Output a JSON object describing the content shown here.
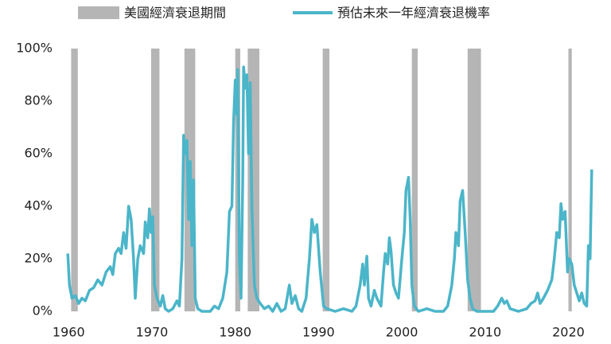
{
  "chart_data": {
    "type": "line",
    "recessions": {
      "name": "美國經濟衰退期間",
      "color": "#b5b5b5",
      "periods": [
        [
          1960.3,
          1961.1
        ],
        [
          1969.9,
          1970.9
        ],
        [
          1973.9,
          1975.2
        ],
        [
          1980.0,
          1980.6
        ],
        [
          1981.5,
          1982.9
        ],
        [
          1990.5,
          1991.3
        ],
        [
          2001.2,
          2001.9
        ],
        [
          2007.9,
          2009.5
        ],
        [
          2020.0,
          2020.4
        ]
      ]
    },
    "series": [
      {
        "name": "預估未來一年經濟衰退機率",
        "color": "#4bb5c9",
        "x": [
          1959.9,
          1960.1,
          1960.4,
          1960.8,
          1961.2,
          1961.6,
          1962,
          1962.5,
          1963,
          1963.5,
          1964,
          1964.5,
          1965,
          1965.3,
          1965.6,
          1966,
          1966.3,
          1966.6,
          1966.9,
          1967.2,
          1967.5,
          1967.8,
          1968.0,
          1968.3,
          1968.6,
          1969,
          1969.2,
          1969.5,
          1969.7,
          1969.9,
          1970.1,
          1970.3,
          1970.6,
          1971,
          1971.3,
          1971.6,
          1972,
          1972.5,
          1973,
          1973.3,
          1973.6,
          1973.8,
          1974.0,
          1974.2,
          1974.4,
          1974.6,
          1974.8,
          1975.0,
          1975.2,
          1975.5,
          1976,
          1977,
          1977.5,
          1978,
          1978.5,
          1979,
          1979.3,
          1979.6,
          1979.8,
          1980.0,
          1980.2,
          1980.3,
          1980.5,
          1980.7,
          1980.9,
          1981.0,
          1981.2,
          1981.4,
          1981.6,
          1981.8,
          1982.0,
          1982.3,
          1982.6,
          1983,
          1983.5,
          1984,
          1984.5,
          1985,
          1985.5,
          1986,
          1986.5,
          1986.8,
          1987.2,
          1987.6,
          1988,
          1988.5,
          1988.9,
          1989.2,
          1989.5,
          1989.8,
          1990.2,
          1990.6,
          1991,
          1992,
          1993,
          1994,
          1994.5,
          1995,
          1995.3,
          1995.5,
          1995.8,
          1996.0,
          1996.3,
          1996.7,
          1997,
          1997.5,
          1997.8,
          1998,
          1998.3,
          1998.5,
          1998.7,
          1999,
          1999.3,
          1999.6,
          2000,
          2000.3,
          2000.5,
          2000.8,
          2001.0,
          2001.2,
          2001.5,
          2002,
          2003,
          2004,
          2005,
          2005.5,
          2006,
          2006.3,
          2006.5,
          2006.8,
          2007.0,
          2007.3,
          2007.6,
          2007.9,
          2008.2,
          2008.5,
          2009,
          2010,
          2011,
          2011.5,
          2012,
          2012.3,
          2012.6,
          2013,
          2014,
          2015,
          2015.5,
          2016,
          2016.3,
          2016.6,
          2017,
          2017.5,
          2018,
          2018.3,
          2018.6,
          2018.9,
          2019.1,
          2019.3,
          2019.6,
          2019.9,
          2020.1,
          2020.4,
          2020.7,
          2021,
          2021.3,
          2021.6,
          2021.9,
          2022.2,
          2022.4,
          2022.6,
          2022.8
        ],
        "values": [
          22,
          10,
          5,
          6,
          3,
          5,
          4,
          8,
          9,
          12,
          10,
          15,
          17,
          14,
          22,
          24,
          22,
          30,
          24,
          40,
          35,
          20,
          5,
          20,
          25,
          22,
          34,
          28,
          39,
          30,
          36,
          10,
          5,
          2,
          6,
          1,
          0,
          1,
          4,
          2,
          20,
          67,
          60,
          65,
          35,
          57,
          25,
          50,
          5,
          1,
          0,
          0,
          2,
          1,
          5,
          15,
          38,
          40,
          72,
          88,
          75,
          92,
          20,
          5,
          50,
          93,
          85,
          90,
          60,
          87,
          40,
          10,
          5,
          3,
          1,
          2,
          0,
          3,
          0,
          1,
          10,
          3,
          6,
          1,
          0,
          5,
          20,
          35,
          30,
          33,
          15,
          2,
          1,
          0,
          1,
          0,
          2,
          10,
          18,
          10,
          21,
          5,
          2,
          8,
          5,
          2,
          15,
          22,
          18,
          28,
          23,
          10,
          7,
          5,
          20,
          30,
          46,
          51,
          35,
          10,
          2,
          0,
          1,
          0,
          0,
          2,
          10,
          20,
          30,
          25,
          42,
          46,
          30,
          12,
          5,
          1,
          0,
          0,
          0,
          2,
          5,
          3,
          4,
          1,
          0,
          1,
          3,
          4,
          7,
          3,
          5,
          8,
          12,
          20,
          30,
          28,
          41,
          35,
          38,
          15,
          20,
          18,
          10,
          7,
          4,
          7,
          3,
          2,
          25,
          20,
          54
        ]
      }
    ],
    "xlim": [
      1959.4,
      2023.2
    ],
    "xticks": [
      1960,
      1970,
      1980,
      1990,
      2000,
      2010,
      2020
    ],
    "ylim": [
      0,
      100
    ],
    "yticks": [
      {
        "value": 0,
        "label": "0%"
      },
      {
        "value": 20,
        "label": "20%"
      },
      {
        "value": 40,
        "label": "40%"
      },
      {
        "value": 60,
        "label": "60%"
      },
      {
        "value": 80,
        "label": "80%"
      },
      {
        "value": 100,
        "label": "100%"
      }
    ]
  }
}
